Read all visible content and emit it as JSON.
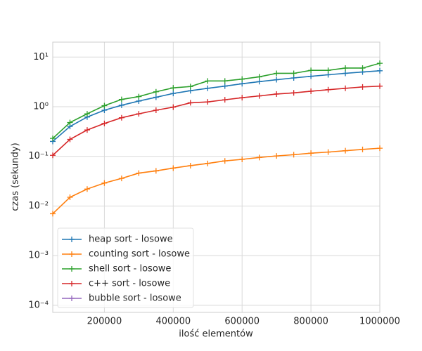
{
  "chart_data": {
    "type": "line",
    "xlabel": "ilość elementów",
    "ylabel": "czas (sekundy)",
    "x": [
      50000,
      100000,
      150000,
      200000,
      250000,
      300000,
      350000,
      400000,
      450000,
      500000,
      550000,
      600000,
      650000,
      700000,
      750000,
      800000,
      850000,
      900000,
      950000,
      1000000
    ],
    "series": [
      {
        "name": "heap sort - losowe",
        "color": "#1f77b4",
        "values": [
          0.2,
          0.4,
          0.62,
          0.85,
          1.07,
          1.3,
          1.55,
          1.85,
          2.1,
          2.35,
          2.6,
          2.9,
          3.2,
          3.5,
          3.8,
          4.1,
          4.4,
          4.7,
          5.0,
          5.3
        ]
      },
      {
        "name": "counting sort - losowe",
        "color": "#ff7f0e",
        "values": [
          0.007,
          0.015,
          0.022,
          0.029,
          0.036,
          0.046,
          0.051,
          0.058,
          0.065,
          0.072,
          0.081,
          0.087,
          0.095,
          0.102,
          0.108,
          0.116,
          0.122,
          0.13,
          0.138,
          0.146
        ]
      },
      {
        "name": "shell sort - losowe",
        "color": "#2ca02c",
        "values": [
          0.23,
          0.48,
          0.72,
          1.05,
          1.4,
          1.6,
          2.0,
          2.4,
          2.55,
          3.3,
          3.3,
          3.6,
          4.0,
          4.7,
          4.7,
          5.4,
          5.4,
          6.0,
          6.0,
          7.5
        ]
      },
      {
        "name": "c++ sort - losowe",
        "color": "#d62728",
        "values": [
          0.105,
          0.22,
          0.34,
          0.46,
          0.6,
          0.72,
          0.85,
          0.98,
          1.2,
          1.25,
          1.38,
          1.52,
          1.65,
          1.8,
          1.9,
          2.05,
          2.2,
          2.35,
          2.5,
          2.6
        ]
      },
      {
        "name": "bubble sort - losowe",
        "color": "#9467bd",
        "values": [
          null,
          null,
          null,
          null,
          null,
          null,
          null,
          null,
          null,
          null,
          null,
          null,
          null,
          null,
          null,
          null,
          null,
          null,
          null,
          null
        ]
      }
    ],
    "xlim": [
      50000,
      1000000
    ],
    "xticks": [
      200000,
      400000,
      600000,
      800000,
      1000000
    ],
    "ylim": [
      7.2e-05,
      20
    ],
    "ylog": true,
    "yticks": [
      {
        "value": 0.0001,
        "label": "10⁻⁴"
      },
      {
        "value": 0.001,
        "label": "10⁻³"
      },
      {
        "value": 0.01,
        "label": "10⁻²"
      },
      {
        "value": 0.1,
        "label": "10⁻¹"
      },
      {
        "value": 1,
        "label": "10⁰"
      },
      {
        "value": 10,
        "label": "10¹"
      }
    ],
    "grid": true,
    "legend": "lower left"
  }
}
